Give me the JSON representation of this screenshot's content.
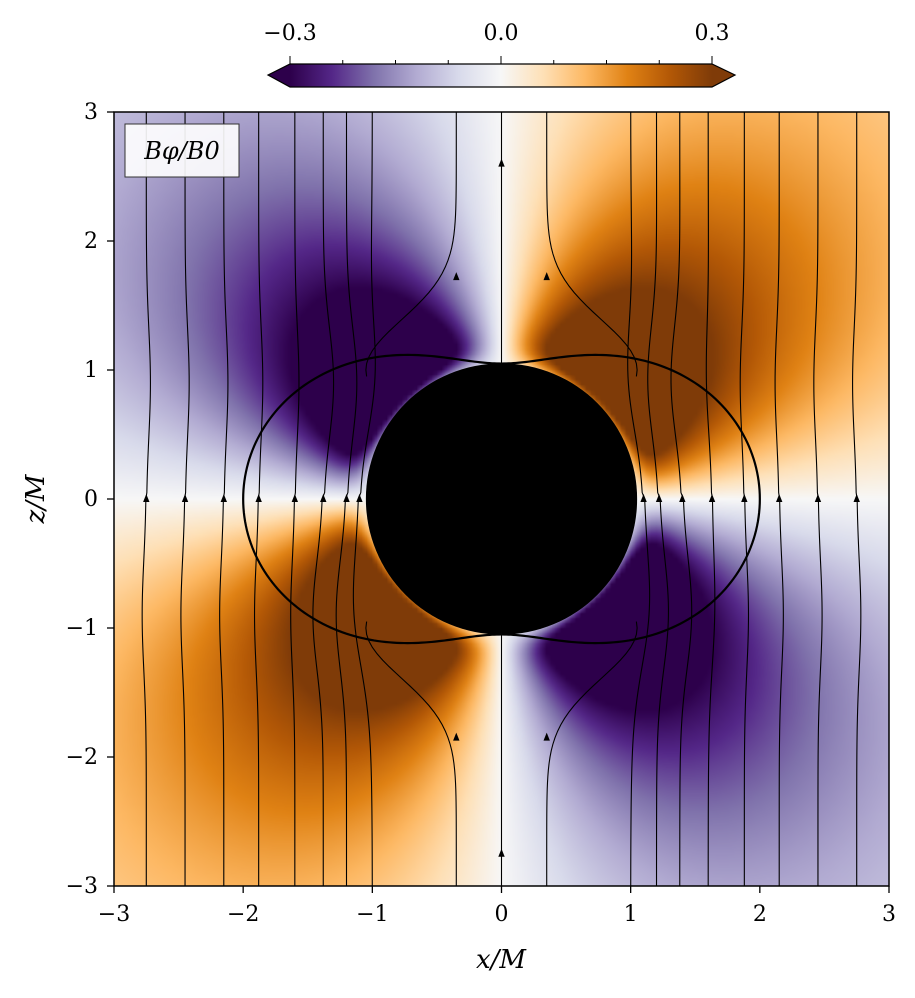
{
  "chart_data": {
    "type": "heatmap",
    "title": "",
    "quantity_label": "Bφ/B0",
    "xlabel": "x/M",
    "ylabel": "z/M",
    "xlim": [
      -3,
      3
    ],
    "ylim": [
      -3,
      3
    ],
    "xticks": [
      -3,
      -2,
      -1,
      0,
      1,
      2,
      3
    ],
    "yticks": [
      -3,
      -2,
      -1,
      0,
      1,
      2,
      3
    ],
    "xtick_labels": [
      "−3",
      "−2",
      "−1",
      "0",
      "1",
      "2",
      "3"
    ],
    "ytick_labels": [
      "−3",
      "−2",
      "−1",
      "0",
      "1",
      "2",
      "3"
    ],
    "colorbar": {
      "min": -0.3,
      "max": 0.3,
      "ticks": [
        -0.3,
        0.0,
        0.3
      ],
      "tick_labels": [
        "−0.3",
        "0.0",
        "0.3"
      ],
      "colormap": "PuOr_r",
      "extend": "both",
      "colors": [
        "#2d004b",
        "#542788",
        "#8073ac",
        "#b2abd2",
        "#d8daeb",
        "#f7f7f7",
        "#fee0b6",
        "#fdb863",
        "#e08214",
        "#b35806",
        "#7f3b08"
      ]
    },
    "horizon_radius": 1.05,
    "ergosphere_max_radius": 2.0,
    "ergosphere_polar_radius": 1.05,
    "field_line_x_at_midplane": [
      -2.75,
      -2.45,
      -2.15,
      -1.88,
      -1.6,
      -1.38,
      -1.2,
      -1.1,
      -0.35,
      0.0,
      0.35,
      1.1,
      1.22,
      1.4,
      1.63,
      1.88,
      2.15,
      2.45,
      2.75
    ],
    "field_line_x_far": [
      -2.75,
      -2.45,
      -2.15,
      -1.88,
      -1.6,
      -1.38,
      -1.2,
      -1.0,
      -0.35,
      0.0,
      0.35,
      1.0,
      1.2,
      1.38,
      1.6,
      1.88,
      2.15,
      2.45,
      2.75
    ],
    "grid": false,
    "legend_position": "top-left"
  }
}
